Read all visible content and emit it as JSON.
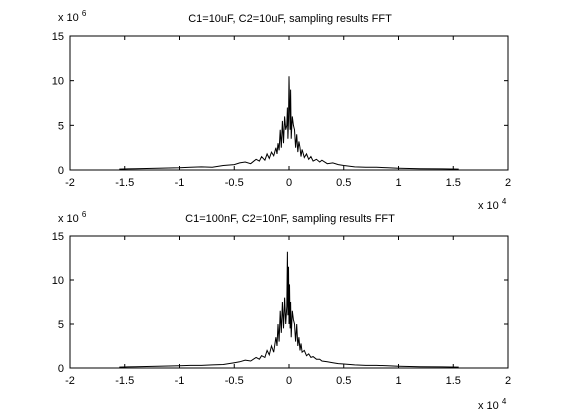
{
  "figure": {
    "background": "#ffffff",
    "line_color": "#000000"
  },
  "chart_data": [
    {
      "type": "line",
      "title": "C1=10uF, C2=10uF, sampling results FFT",
      "xlabel": "",
      "ylabel": "",
      "xlim": [
        -2,
        2
      ],
      "ylim": [
        0,
        15
      ],
      "x_ticks": [
        "-2",
        "-1.5",
        "-1",
        "-0.5",
        "0",
        "0.5",
        "1",
        "1.5",
        "2"
      ],
      "y_ticks": [
        "0",
        "5",
        "10",
        "15"
      ],
      "x_multiplier": {
        "base": "x 10",
        "exponent": "4"
      },
      "y_multiplier": {
        "base": "x 10",
        "exponent": "6"
      },
      "series": [
        {
          "x": [
            -1.55,
            -1.4,
            -1.2,
            -1.0,
            -0.9,
            -0.8,
            -0.7,
            -0.6,
            -0.5,
            -0.45,
            -0.4,
            -0.35,
            -0.3,
            -0.27,
            -0.25,
            -0.22,
            -0.2,
            -0.18,
            -0.16,
            -0.14,
            -0.12,
            -0.11,
            -0.1,
            -0.09,
            -0.08,
            -0.07,
            -0.06,
            -0.05,
            -0.04,
            -0.03,
            -0.02,
            -0.015,
            -0.01,
            -0.005,
            0.0,
            0.005,
            0.01,
            0.015,
            0.02,
            0.03,
            0.04,
            0.05,
            0.06,
            0.07,
            0.08,
            0.09,
            0.1,
            0.11,
            0.12,
            0.14,
            0.16,
            0.18,
            0.2,
            0.22,
            0.25,
            0.28,
            0.3,
            0.35,
            0.4,
            0.45,
            0.5,
            0.6,
            0.7,
            0.8,
            0.9,
            1.0,
            1.2,
            1.4,
            1.55
          ],
          "y": [
            0.1,
            0.15,
            0.2,
            0.25,
            0.3,
            0.35,
            0.3,
            0.5,
            0.6,
            0.8,
            0.9,
            0.7,
            1.2,
            1.0,
            1.5,
            1.1,
            1.8,
            1.3,
            2.0,
            1.6,
            2.5,
            1.8,
            3.0,
            2.2,
            4.5,
            2.5,
            5.5,
            3.0,
            6.0,
            4.5,
            5.0,
            7.0,
            3.5,
            5.5,
            10.5,
            7.5,
            4.5,
            9.0,
            3.5,
            6.0,
            5.0,
            4.5,
            2.5,
            4.0,
            2.0,
            3.2,
            2.5,
            1.5,
            2.3,
            1.4,
            1.8,
            1.2,
            1.5,
            1.0,
            1.2,
            0.9,
            1.1,
            0.7,
            0.8,
            0.6,
            0.5,
            0.35,
            0.3,
            0.3,
            0.25,
            0.2,
            0.15,
            0.12,
            0.1
          ]
        }
      ]
    },
    {
      "type": "line",
      "title": "C1=100nF, C2=10nF, sampling results FFT",
      "xlabel": "",
      "ylabel": "",
      "xlim": [
        -2,
        2
      ],
      "ylim": [
        0,
        15
      ],
      "x_ticks": [
        "-2",
        "-1.5",
        "-1",
        "-0.5",
        "0",
        "0.5",
        "1",
        "1.5",
        "2"
      ],
      "y_ticks": [
        "0",
        "5",
        "10",
        "15"
      ],
      "x_multiplier": {
        "base": "x 10",
        "exponent": "4"
      },
      "y_multiplier": {
        "base": "x 10",
        "exponent": "6"
      },
      "series": [
        {
          "x": [
            -1.55,
            -1.4,
            -1.2,
            -1.0,
            -0.9,
            -0.8,
            -0.7,
            -0.6,
            -0.5,
            -0.45,
            -0.4,
            -0.35,
            -0.3,
            -0.27,
            -0.25,
            -0.22,
            -0.2,
            -0.18,
            -0.16,
            -0.14,
            -0.12,
            -0.11,
            -0.1,
            -0.09,
            -0.08,
            -0.07,
            -0.06,
            -0.05,
            -0.04,
            -0.03,
            -0.02,
            -0.015,
            -0.01,
            -0.005,
            0.0,
            0.005,
            0.01,
            0.015,
            0.02,
            0.03,
            0.04,
            0.05,
            0.06,
            0.07,
            0.08,
            0.09,
            0.1,
            0.11,
            0.12,
            0.14,
            0.16,
            0.18,
            0.2,
            0.22,
            0.25,
            0.28,
            0.3,
            0.35,
            0.4,
            0.45,
            0.5,
            0.6,
            0.7,
            0.8,
            0.9,
            1.0,
            1.2,
            1.4,
            1.55
          ],
          "y": [
            0.1,
            0.15,
            0.2,
            0.25,
            0.3,
            0.3,
            0.35,
            0.4,
            0.6,
            0.7,
            0.9,
            0.8,
            1.2,
            1.0,
            1.4,
            1.2,
            2.0,
            1.5,
            2.5,
            1.8,
            3.5,
            2.5,
            5.0,
            3.0,
            6.5,
            4.0,
            7.5,
            4.5,
            8.0,
            5.0,
            7.0,
            13.2,
            6.0,
            11.5,
            5.0,
            9.5,
            4.5,
            7.5,
            3.5,
            6.5,
            5.5,
            5.0,
            3.0,
            5.0,
            2.5,
            3.5,
            2.0,
            2.8,
            1.8,
            2.0,
            1.4,
            1.6,
            1.2,
            1.3,
            1.0,
            1.0,
            0.8,
            0.7,
            0.6,
            0.5,
            0.45,
            0.35,
            0.3,
            0.3,
            0.25,
            0.2,
            0.15,
            0.12,
            0.1
          ]
        }
      ]
    }
  ]
}
